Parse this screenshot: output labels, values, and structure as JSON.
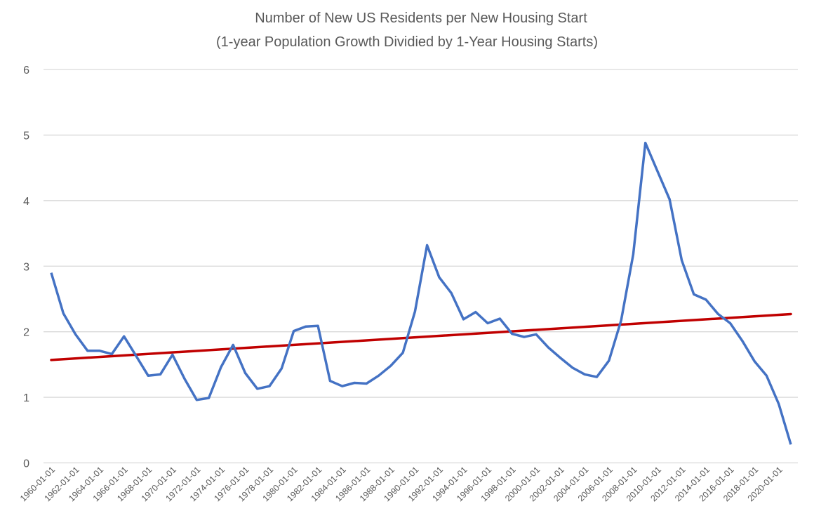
{
  "chart_data": {
    "type": "line",
    "title": "Number of New US Residents per New Housing Start",
    "subtitle": "(1-year Population Growth Dividied by 1-Year Housing Starts)",
    "xlabel": "",
    "ylabel": "",
    "ylim": [
      0,
      6
    ],
    "yticks": [
      "0",
      "1",
      "2",
      "3",
      "4",
      "5",
      "6"
    ],
    "grid": true,
    "legend": "none",
    "x": [
      "1960-01-01",
      "1961-01-01",
      "1962-01-01",
      "1963-01-01",
      "1964-01-01",
      "1965-01-01",
      "1966-01-01",
      "1967-01-01",
      "1968-01-01",
      "1969-01-01",
      "1970-01-01",
      "1971-01-01",
      "1972-01-01",
      "1973-01-01",
      "1974-01-01",
      "1975-01-01",
      "1976-01-01",
      "1977-01-01",
      "1978-01-01",
      "1979-01-01",
      "1980-01-01",
      "1981-01-01",
      "1982-01-01",
      "1983-01-01",
      "1984-01-01",
      "1985-01-01",
      "1986-01-01",
      "1987-01-01",
      "1988-01-01",
      "1989-01-01",
      "1990-01-01",
      "1991-01-01",
      "1992-01-01",
      "1993-01-01",
      "1994-01-01",
      "1995-01-01",
      "1996-01-01",
      "1997-01-01",
      "1998-01-01",
      "1999-01-01",
      "2000-01-01",
      "2001-01-01",
      "2002-01-01",
      "2003-01-01",
      "2004-01-01",
      "2005-01-01",
      "2006-01-01",
      "2007-01-01",
      "2008-01-01",
      "2009-01-01",
      "2010-01-01",
      "2011-01-01",
      "2012-01-01",
      "2013-01-01",
      "2014-01-01",
      "2015-01-01",
      "2016-01-01",
      "2017-01-01",
      "2018-01-01",
      "2019-01-01",
      "2020-01-01",
      "2021-01-01"
    ],
    "xtick_labels": [
      "1960-01-01",
      "1962-01-01",
      "1964-01-01",
      "1966-01-01",
      "1968-01-01",
      "1970-01-01",
      "1972-01-01",
      "1974-01-01",
      "1976-01-01",
      "1978-01-01",
      "1980-01-01",
      "1982-01-01",
      "1984-01-01",
      "1986-01-01",
      "1988-01-01",
      "1990-01-01",
      "1992-01-01",
      "1994-01-01",
      "1996-01-01",
      "1998-01-01",
      "2000-01-01",
      "2002-01-01",
      "2004-01-01",
      "2006-01-01",
      "2008-01-01",
      "2010-01-01",
      "2012-01-01",
      "2014-01-01",
      "2016-01-01",
      "2018-01-01",
      "2020-01-01"
    ],
    "series": [
      {
        "color": "#4472C4",
        "values": [
          2.9,
          2.28,
          1.96,
          1.71,
          1.71,
          1.66,
          1.93,
          1.63,
          1.33,
          1.35,
          1.65,
          1.28,
          0.96,
          0.99,
          1.46,
          1.8,
          1.37,
          1.13,
          1.17,
          1.44,
          2.01,
          2.08,
          2.09,
          1.25,
          1.17,
          1.22,
          1.21,
          1.33,
          1.48,
          1.68,
          2.31,
          3.32,
          2.83,
          2.59,
          2.19,
          2.3,
          2.13,
          2.2,
          1.97,
          1.92,
          1.96,
          1.76,
          1.6,
          1.45,
          1.35,
          1.31,
          1.56,
          2.17,
          3.18,
          4.88,
          4.45,
          4.02,
          3.09,
          2.57,
          2.49,
          2.27,
          2.13,
          1.86,
          1.55,
          1.33,
          0.9,
          0.28
        ]
      }
    ],
    "trendline": {
      "type": "linear",
      "color": "#C00000",
      "start": 1.57,
      "end": 2.27
    }
  }
}
